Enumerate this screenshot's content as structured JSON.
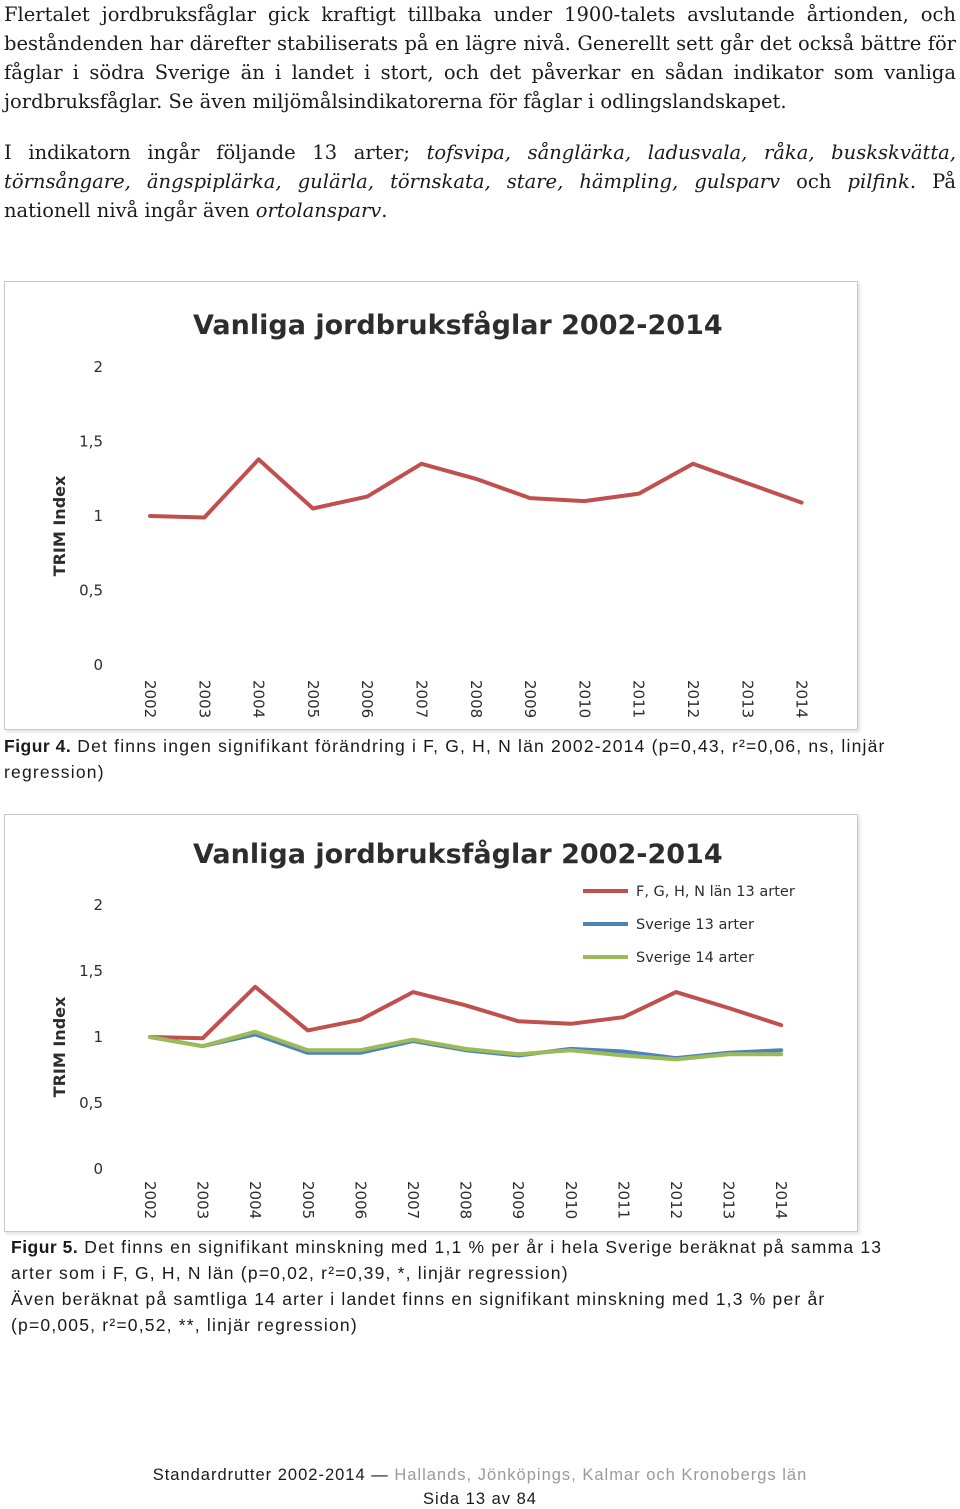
{
  "intro": {
    "p1": "Flertalet jordbruksfåglar gick kraftigt tillbaka under 1900-talets avslutande årtionden, och beståndenden har därefter stabiliserats på en lägre nivå. Generellt sett går det också bättre för fåglar i södra Sverige än i landet i stort, och det påverkar en sådan indikator som vanliga jordbruksfåglar. Se även miljömålsindikatorerna för fåglar i odlingslandskapet.",
    "p2_start": "I indikatorn ingår följande 13 arter; ",
    "p2_species": "tofsvipa, sånglärka, ladusvala, råka, buskskvätta, törnsångare, ängspiplärka, gulärla, törnskata, stare, hämpling, gulsparv",
    "p2_och": " och ",
    "p2_last": "pilfink",
    "p2_nat": ". På nationell nivå ingår även ",
    "p2_ortolan": "ortolansparv",
    "p2_end": "."
  },
  "chart_data": [
    {
      "type": "line",
      "title": "Vanliga jordbruksfåglar 2002-2014",
      "ylabel": "TRIM Index",
      "ylim": [
        0,
        2
      ],
      "yticks": [
        "0",
        "0,5",
        "1",
        "1,5",
        "2"
      ],
      "x": [
        "2002",
        "2003",
        "2004",
        "2005",
        "2006",
        "2007",
        "2008",
        "2009",
        "2010",
        "2011",
        "2012",
        "2013",
        "2014"
      ],
      "legend": false,
      "series": [
        {
          "color": "#c0504d",
          "values": [
            1.0,
            0.99,
            1.38,
            1.05,
            1.13,
            1.35,
            1.25,
            1.12,
            1.1,
            1.15,
            1.35,
            1.22,
            1.09
          ]
        }
      ]
    },
    {
      "type": "line",
      "title": "Vanliga jordbruksfåglar 2002-2014",
      "ylabel": "TRIM Index",
      "ylim": [
        0,
        2
      ],
      "yticks": [
        "0",
        "0,5",
        "1",
        "1,5",
        "2"
      ],
      "x": [
        "2002",
        "2003",
        "2004",
        "2005",
        "2006",
        "2007",
        "2008",
        "2009",
        "2010",
        "2011",
        "2012",
        "2013",
        "2014"
      ],
      "legend": "top-right",
      "series": [
        {
          "name": "F, G, H, N län 13 arter",
          "color": "#c0504d",
          "values": [
            1.0,
            0.99,
            1.38,
            1.05,
            1.13,
            1.34,
            1.24,
            1.12,
            1.1,
            1.15,
            1.34,
            1.22,
            1.09
          ]
        },
        {
          "name": "Sverige 13 arter",
          "color": "#4f81bd",
          "values": [
            1.0,
            0.93,
            1.02,
            0.88,
            0.88,
            0.97,
            0.9,
            0.86,
            0.91,
            0.89,
            0.84,
            0.88,
            0.9
          ]
        },
        {
          "name": "Sverige  14 arter",
          "color": "#9bbb59",
          "values": [
            1.0,
            0.93,
            1.04,
            0.9,
            0.9,
            0.98,
            0.91,
            0.87,
            0.9,
            0.86,
            0.83,
            0.87,
            0.87
          ]
        }
      ]
    }
  ],
  "figure4_caption": {
    "label": "Figur 4.",
    "text": " Det finns ingen signifikant förändring i F, G, H, N län 2002-2014 (p=0,43, r²=0,06, ns, linjär regression)"
  },
  "figure5_caption": {
    "label": "Figur 5.",
    "line1": " Det finns en signifikant minskning med 1,1 % per år i hela Sverige beräknat på samma 13 arter som i F, G, H, N län (p=0,02, r²=0,39, *, linjär regression)",
    "line2": "Även beräknat på samtliga 14 arter i landet finns en signifikant minskning med 1,3 % per år (p=0,005, r²=0,52, **, linjär regression)"
  },
  "footer": {
    "left": "Standardrutter 2002-2014 — ",
    "right": "Hallands, Jönköpings, Kalmar och Kronobergs län",
    "page": "Sida 13 av 84"
  }
}
